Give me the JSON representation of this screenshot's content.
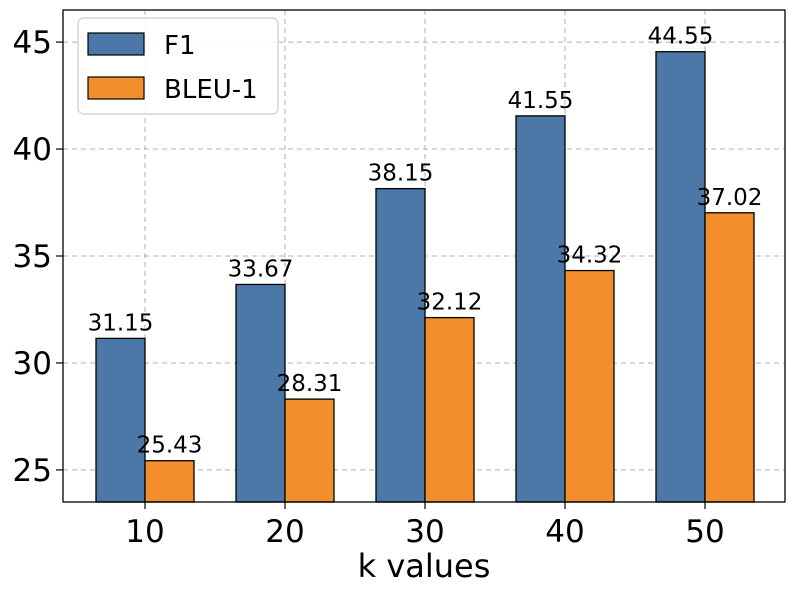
{
  "chart_data": {
    "type": "bar",
    "title": "",
    "xlabel": "k values",
    "ylabel": "",
    "categories": [
      "10",
      "20",
      "30",
      "40",
      "50"
    ],
    "series": [
      {
        "name": "F1",
        "color": "#4c78a8",
        "values": [
          31.15,
          33.67,
          38.15,
          41.55,
          44.55
        ],
        "value_labels": [
          "31.15",
          "33.67",
          "38.15",
          "41.55",
          "44.55"
        ]
      },
      {
        "name": "BLEU-1",
        "color": "#f28e2b",
        "values": [
          25.43,
          28.31,
          32.12,
          34.32,
          37.02
        ],
        "value_labels": [
          "25.43",
          "28.31",
          "32.12",
          "34.32",
          "37.02"
        ]
      }
    ],
    "ylim": [
      23.5,
      46.5
    ],
    "yticks": [
      25,
      30,
      35,
      40,
      45
    ],
    "ytick_labels": [
      "25",
      "30",
      "35",
      "40",
      "45"
    ],
    "grid": true,
    "legend_position": "top-left"
  }
}
